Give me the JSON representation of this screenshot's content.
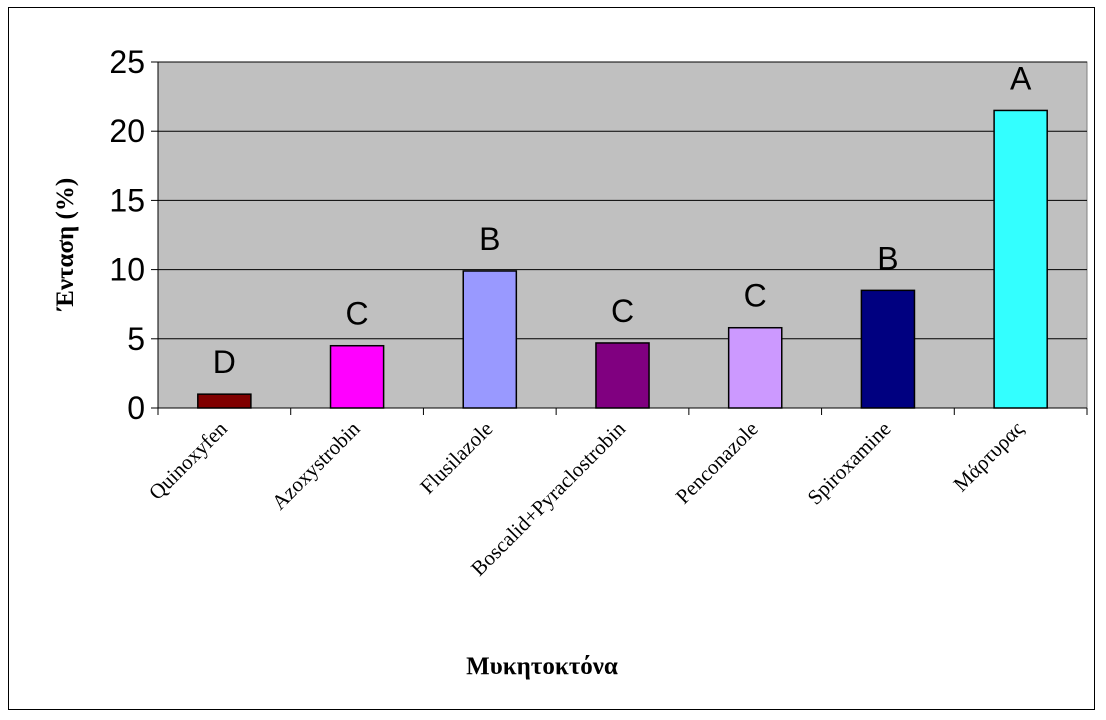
{
  "chart_data": {
    "type": "bar",
    "title": "",
    "xlabel": "Μυκητοκτόνα",
    "ylabel": "Ένταση (%)",
    "ylim": [
      0,
      25
    ],
    "yticks": [
      0,
      5,
      10,
      15,
      20,
      25
    ],
    "grid": true,
    "legend": "none",
    "plot_background": "#C0C0C0",
    "categories": [
      "Quinoxyfen",
      "Azoxystrobin",
      "Flusilazole",
      "Boscalid+Pyraclostrobin",
      "Penconazole",
      "Spiroxamine",
      "Μάρτυρας"
    ],
    "values": [
      1.0,
      4.5,
      9.9,
      4.7,
      5.8,
      8.5,
      21.5
    ],
    "data_labels": [
      "D",
      "C",
      "B",
      "C",
      "C",
      "B",
      "A"
    ],
    "colors": [
      "#800000",
      "#FF00FF",
      "#9999FF",
      "#800080",
      "#CC99FF",
      "#000080",
      "#33FFFF"
    ]
  }
}
